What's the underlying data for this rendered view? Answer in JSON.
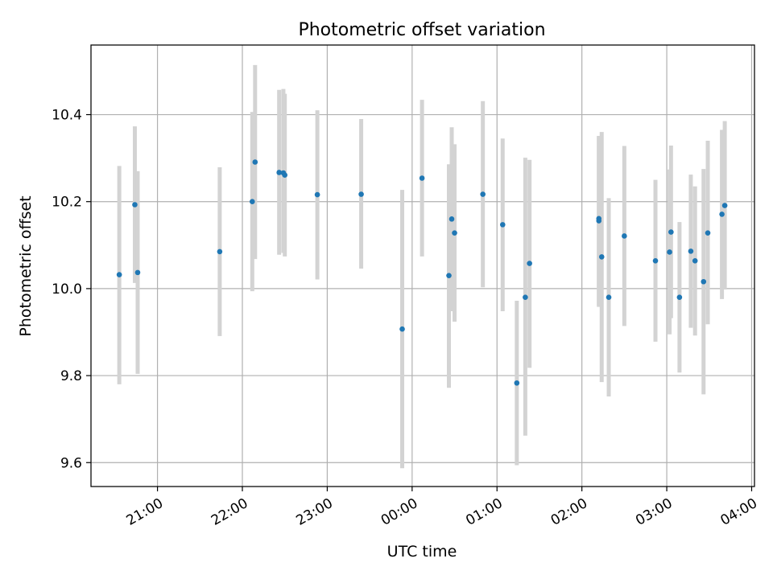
{
  "chart_data": {
    "type": "scatter",
    "title": "Photometric offset variation",
    "xlabel": "UTC time",
    "ylabel": "Photometric offset",
    "x_tick_labels": [
      "21:00",
      "22:00",
      "23:00",
      "00:00",
      "01:00",
      "02:00",
      "03:00",
      "04:00"
    ],
    "x_ticks": [
      "21:00",
      "22:00",
      "23:00",
      "24:00",
      "25:00",
      "26:00",
      "27:00",
      "28:00"
    ],
    "y_ticks": [
      9.6,
      9.8,
      10.0,
      10.2,
      10.4
    ],
    "y_tick_labels": [
      "9.6",
      "9.8",
      "10.0",
      "10.2",
      "10.4"
    ],
    "xlim": [
      "20:13",
      "28:02"
    ],
    "ylim": [
      9.545,
      10.56
    ],
    "grid": true,
    "colors": {
      "points": "#1f77b4",
      "error_bars": "#d3d3d3",
      "grid": "#b0b0b0"
    },
    "points": [
      {
        "x": "20:33",
        "y": 10.032,
        "ylow": 9.78,
        "yhigh": 10.282
      },
      {
        "x": "20:44",
        "y": 10.193,
        "ylow": 10.013,
        "yhigh": 10.373
      },
      {
        "x": "20:46",
        "y": 10.037,
        "ylow": 9.804,
        "yhigh": 10.27
      },
      {
        "x": "21:44",
        "y": 10.085,
        "ylow": 9.891,
        "yhigh": 10.279
      },
      {
        "x": "22:07",
        "y": 10.2,
        "ylow": 9.994,
        "yhigh": 10.406
      },
      {
        "x": "22:09",
        "y": 10.291,
        "ylow": 10.068,
        "yhigh": 10.514
      },
      {
        "x": "22:26",
        "y": 10.267,
        "ylow": 10.078,
        "yhigh": 10.457
      },
      {
        "x": "22:29",
        "y": 10.266,
        "ylow": 10.082,
        "yhigh": 10.459
      },
      {
        "x": "22:30",
        "y": 10.261,
        "ylow": 10.074,
        "yhigh": 10.448
      },
      {
        "x": "22:53",
        "y": 10.216,
        "ylow": 10.021,
        "yhigh": 10.41
      },
      {
        "x": "23:24",
        "y": 10.217,
        "ylow": 10.046,
        "yhigh": 10.39
      },
      {
        "x": "23:53",
        "y": 9.907,
        "ylow": 9.587,
        "yhigh": 10.227
      },
      {
        "x": "24:07",
        "y": 10.254,
        "ylow": 10.074,
        "yhigh": 10.434
      },
      {
        "x": "24:26",
        "y": 10.03,
        "ylow": 9.772,
        "yhigh": 10.286
      },
      {
        "x": "24:28",
        "y": 10.16,
        "ylow": 9.948,
        "yhigh": 10.371
      },
      {
        "x": "24:30",
        "y": 10.128,
        "ylow": 9.924,
        "yhigh": 10.332
      },
      {
        "x": "24:50",
        "y": 10.217,
        "ylow": 10.003,
        "yhigh": 10.431
      },
      {
        "x": "25:04",
        "y": 10.147,
        "ylow": 9.948,
        "yhigh": 10.345
      },
      {
        "x": "25:14",
        "y": 9.783,
        "ylow": 9.594,
        "yhigh": 9.972
      },
      {
        "x": "25:20",
        "y": 9.98,
        "ylow": 9.662,
        "yhigh": 10.301
      },
      {
        "x": "25:23",
        "y": 10.058,
        "ylow": 9.818,
        "yhigh": 10.296
      },
      {
        "x": "26:12",
        "y": 10.156,
        "ylow": 9.958,
        "yhigh": 10.351
      },
      {
        "x": "26:12",
        "y": 10.161,
        "ylow": 9.961,
        "yhigh": 10.35
      },
      {
        "x": "26:14",
        "y": 10.073,
        "ylow": 9.785,
        "yhigh": 10.36
      },
      {
        "x": "26:19",
        "y": 9.98,
        "ylow": 9.752,
        "yhigh": 10.208
      },
      {
        "x": "26:30",
        "y": 10.121,
        "ylow": 9.914,
        "yhigh": 10.328
      },
      {
        "x": "26:52",
        "y": 10.064,
        "ylow": 9.878,
        "yhigh": 10.25
      },
      {
        "x": "27:02",
        "y": 10.084,
        "ylow": 9.895,
        "yhigh": 10.274
      },
      {
        "x": "27:03",
        "y": 10.13,
        "ylow": 9.932,
        "yhigh": 10.329
      },
      {
        "x": "27:09",
        "y": 9.98,
        "ylow": 9.807,
        "yhigh": 10.153
      },
      {
        "x": "27:17",
        "y": 10.086,
        "ylow": 9.91,
        "yhigh": 10.262
      },
      {
        "x": "27:20",
        "y": 10.064,
        "ylow": 9.892,
        "yhigh": 10.235
      },
      {
        "x": "27:26",
        "y": 10.016,
        "ylow": 9.757,
        "yhigh": 10.275
      },
      {
        "x": "27:29",
        "y": 10.128,
        "ylow": 9.918,
        "yhigh": 10.34
      },
      {
        "x": "27:39",
        "y": 10.171,
        "ylow": 9.976,
        "yhigh": 10.365
      },
      {
        "x": "27:41",
        "y": 10.191,
        "ylow": 9.998,
        "yhigh": 10.385
      }
    ]
  }
}
